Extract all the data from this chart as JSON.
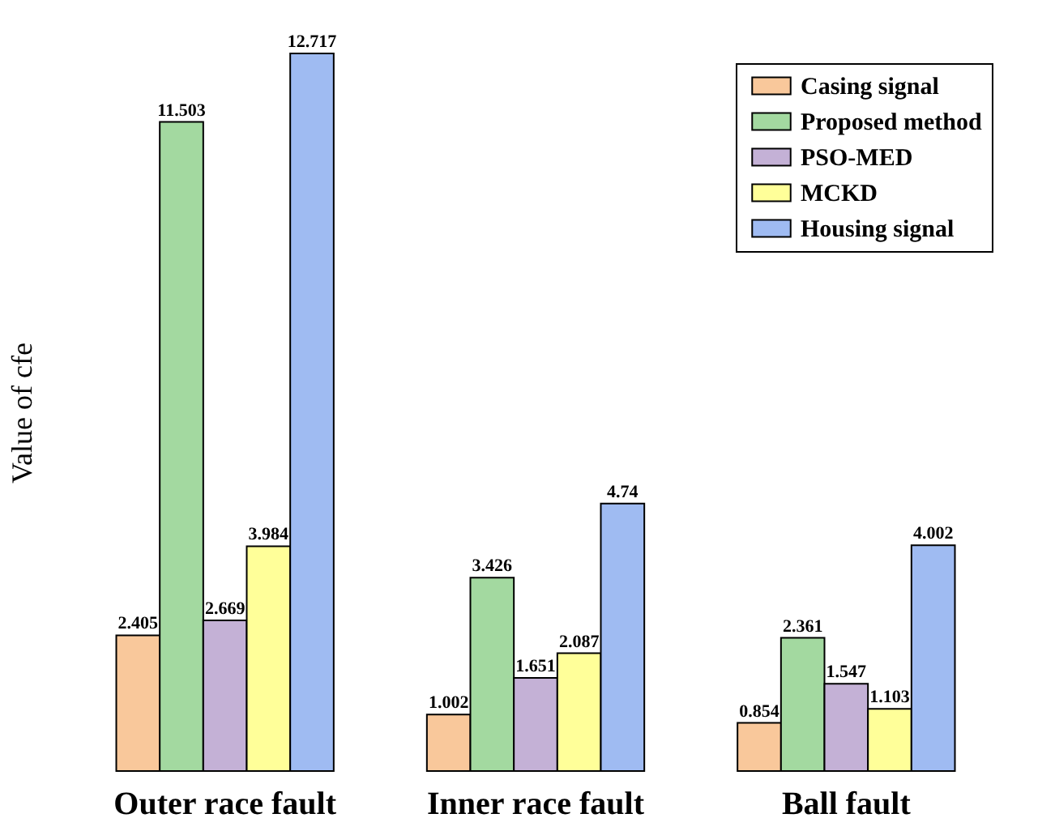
{
  "chart_data": {
    "type": "bar",
    "ylabel": "Value of cfe",
    "categories": [
      "Outer race fault",
      "Inner race fault",
      "Ball fault"
    ],
    "series": [
      {
        "name": "Casing signal",
        "color": "#f9c89b",
        "values": [
          2.405,
          1.002,
          0.854
        ]
      },
      {
        "name": "Proposed method",
        "color": "#a3d9a0",
        "values": [
          11.503,
          3.426,
          2.361
        ]
      },
      {
        "name": "PSO-MED",
        "color": "#c4b1d6",
        "values": [
          2.669,
          1.651,
          1.547
        ]
      },
      {
        "name": "MCKD",
        "color": "#ffff99",
        "values": [
          3.984,
          2.087,
          1.103
        ]
      },
      {
        "name": "Housing signal",
        "color": "#9fbbf2",
        "values": [
          12.717,
          4.74,
          4.002
        ]
      }
    ],
    "data_labels": true,
    "legend": "top right"
  }
}
